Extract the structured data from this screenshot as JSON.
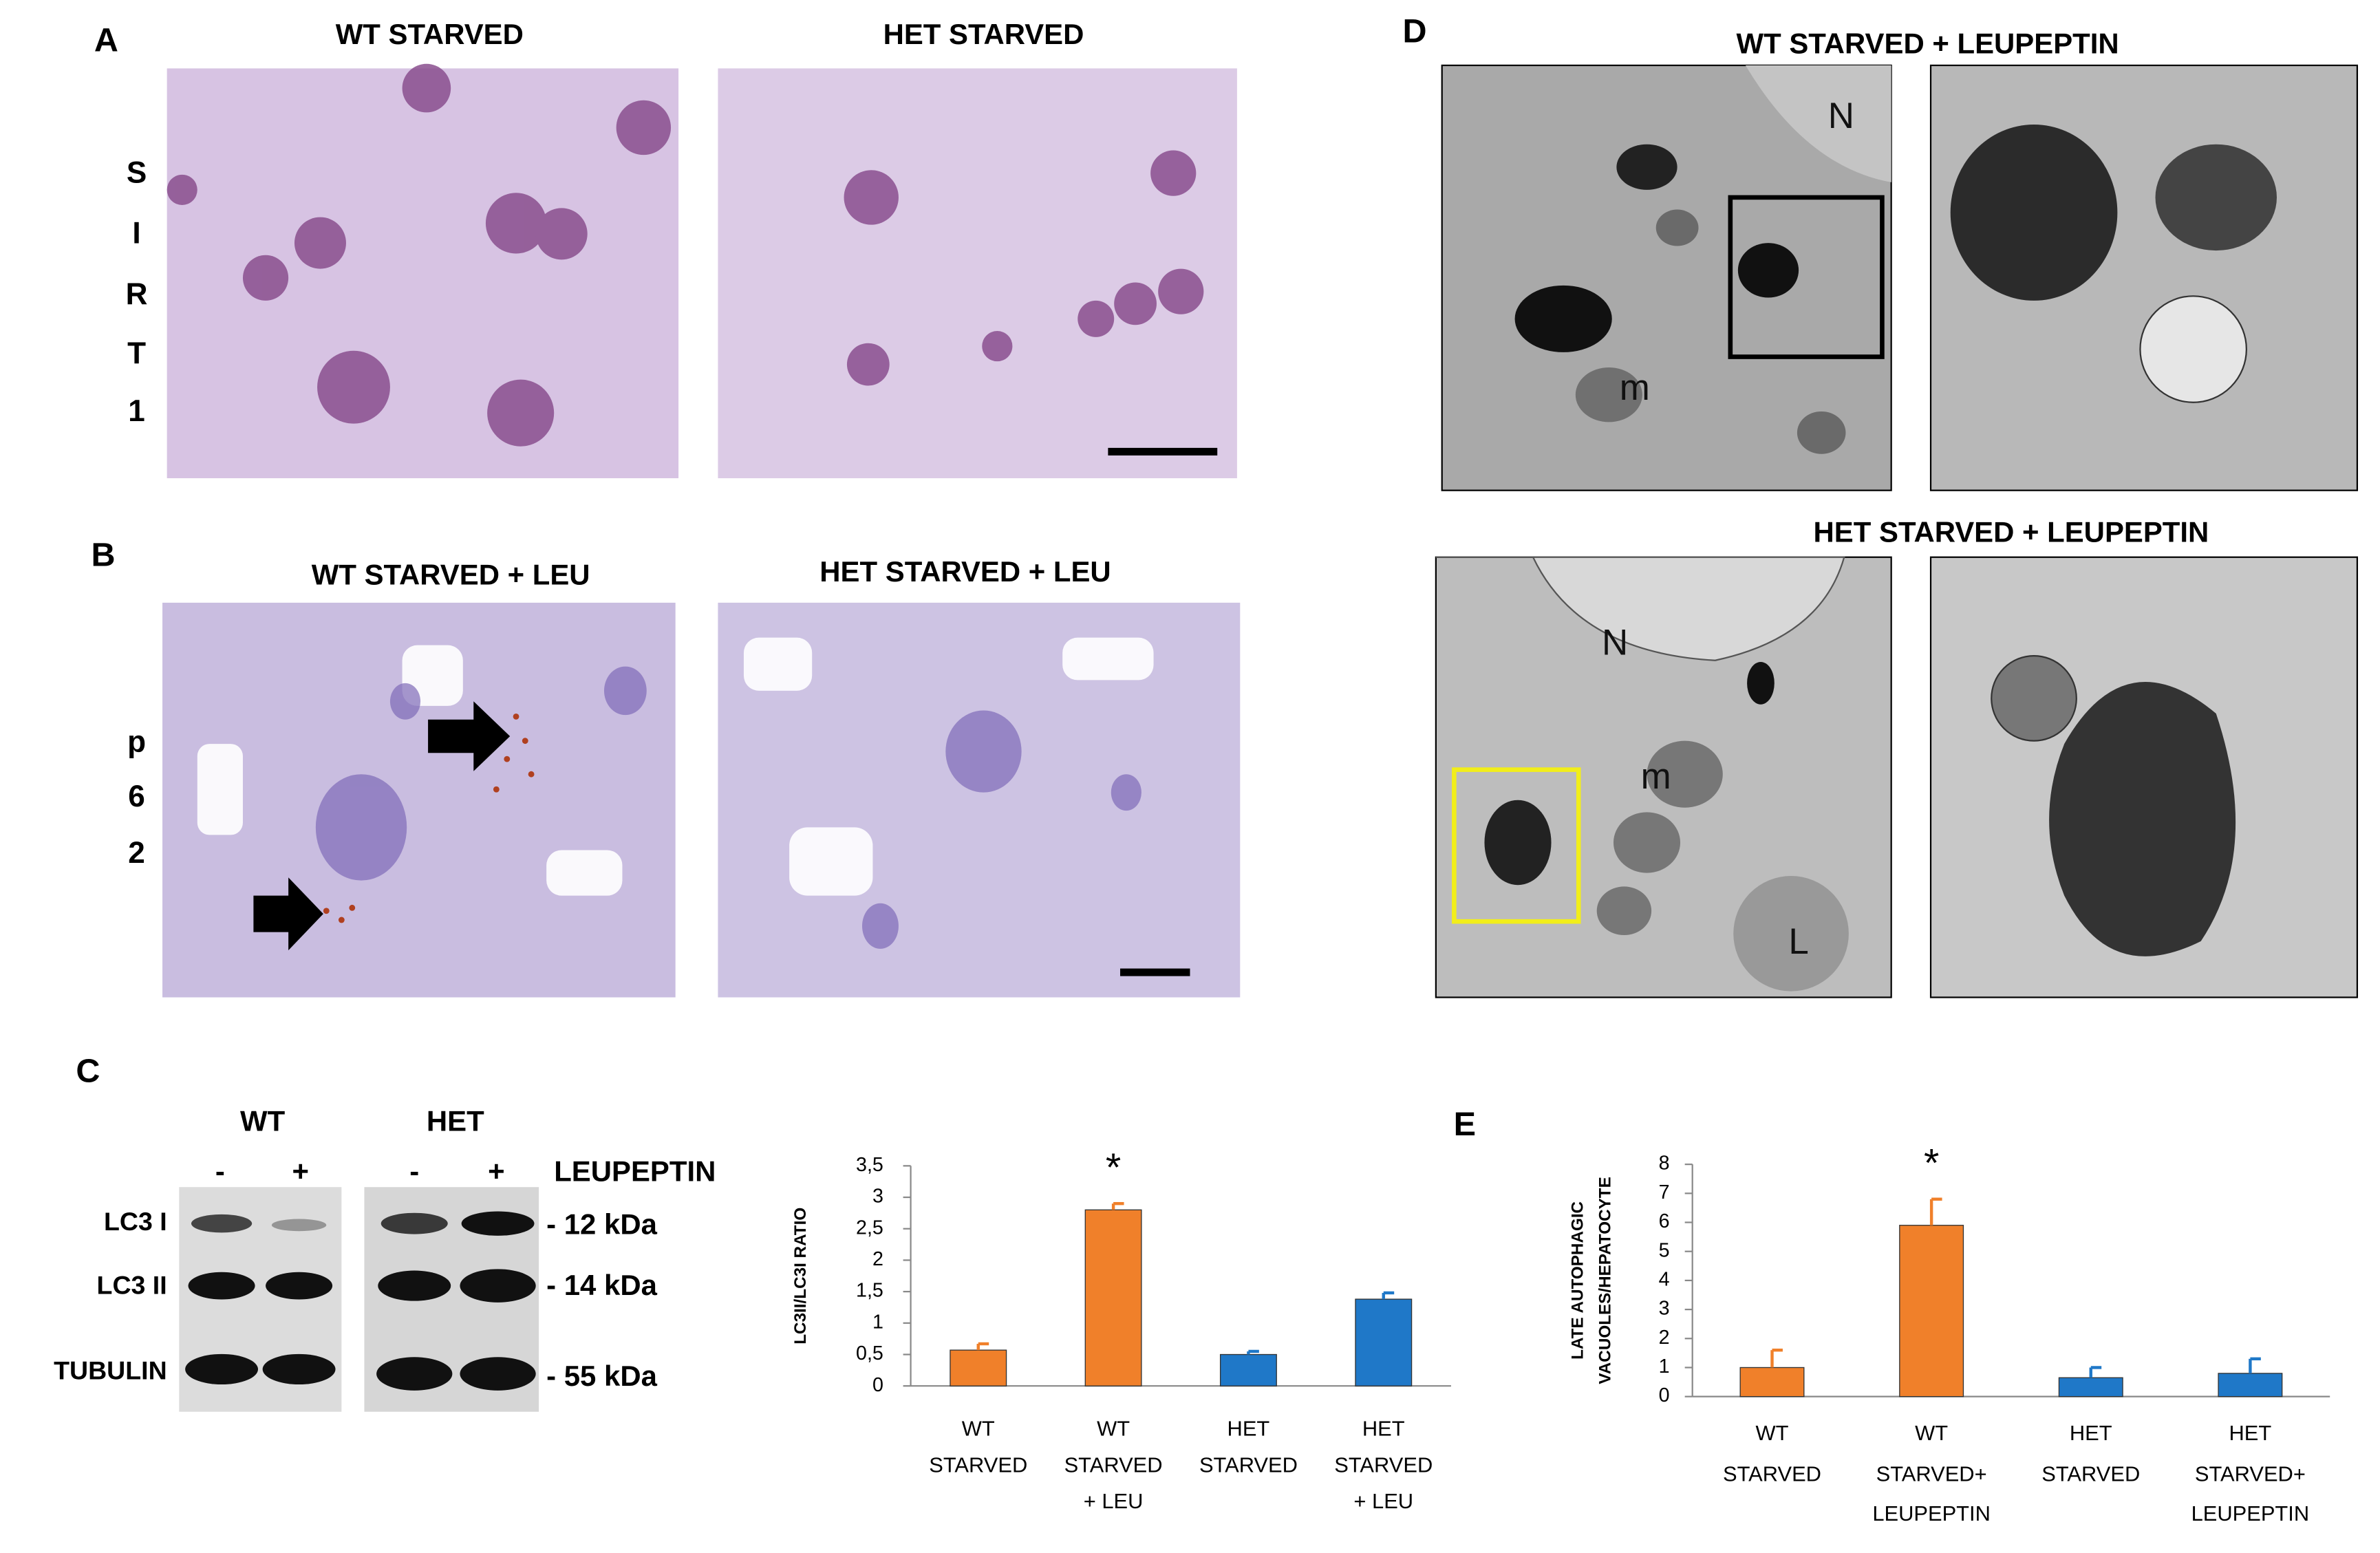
{
  "panels": {
    "A": {
      "label": "A",
      "titles": [
        "WT STARVED",
        "HET STARVED"
      ],
      "side_label": [
        "S",
        "I",
        "R",
        "T",
        "1"
      ]
    },
    "B": {
      "label": "B",
      "titles": [
        "WT STARVED + LEU",
        "HET STARVED + LEU"
      ],
      "side_label": [
        "p",
        "6",
        "2"
      ]
    },
    "C": {
      "label": "C",
      "groups": [
        "WT",
        "HET"
      ],
      "lanes": [
        "-",
        "+",
        "-",
        "+"
      ],
      "treatment": "LEUPEPTIN",
      "rows": [
        "LC3 I",
        "LC3 II",
        "TUBULIN"
      ],
      "sizes": [
        "- 12 kDa",
        "- 14 kDa",
        "- 55 kDa"
      ]
    },
    "D": {
      "label": "D",
      "titles": [
        "WT STARVED + LEUPEPTIN",
        "HET STARVED + LEUPEPTIN"
      ],
      "markers": [
        "N",
        "m",
        "N",
        "m",
        "L"
      ]
    },
    "E": {
      "label": "E"
    }
  },
  "chart_data": [
    {
      "type": "bar",
      "y_label": [
        "LC3II/LC3I RATIO"
      ],
      "categories": [
        [
          "WT",
          "STARVED"
        ],
        [
          "WT",
          "STARVED",
          "+ LEU"
        ],
        [
          "HET",
          "STARVED"
        ],
        [
          "HET",
          "STARVED",
          "+ LEU"
        ]
      ],
      "values": [
        0.57,
        2.8,
        0.5,
        1.38
      ],
      "errors": [
        0.1,
        0.1,
        0.05,
        0.1
      ],
      "colors": [
        "#f0802a",
        "#f0802a",
        "#1f78c8",
        "#1f78c8"
      ],
      "ylim": [
        0,
        3.5
      ],
      "yticks": [
        0,
        {
          "value": 0.5,
          "label": "0,5"
        },
        1,
        {
          "value": 1.5,
          "label": "1,5"
        },
        2,
        {
          "value": 2.5,
          "label": "2,5"
        },
        3,
        {
          "value": 3.5,
          "label": "3,5"
        }
      ],
      "annotation": "*"
    },
    {
      "type": "bar",
      "y_label": [
        "LATE AUTOPHAGIC",
        "VACUOLES/HEPATOCYTE"
      ],
      "categories": [
        [
          "WT",
          "STARVED"
        ],
        [
          "WT",
          "STARVED+",
          "LEUPEPTIN"
        ],
        [
          "HET",
          "STARVED"
        ],
        [
          "HET",
          "STARVED+",
          "LEUPEPTIN"
        ]
      ],
      "values": [
        1.0,
        5.9,
        0.65,
        0.8
      ],
      "errors": [
        0.6,
        0.9,
        0.35,
        0.5
      ],
      "colors": [
        "#f0802a",
        "#f0802a",
        "#1f78c8",
        "#1f78c8"
      ],
      "ylim": [
        0,
        8
      ],
      "yticks": [
        0,
        1,
        2,
        3,
        4,
        5,
        6,
        7,
        8
      ],
      "annotation": "*"
    }
  ]
}
